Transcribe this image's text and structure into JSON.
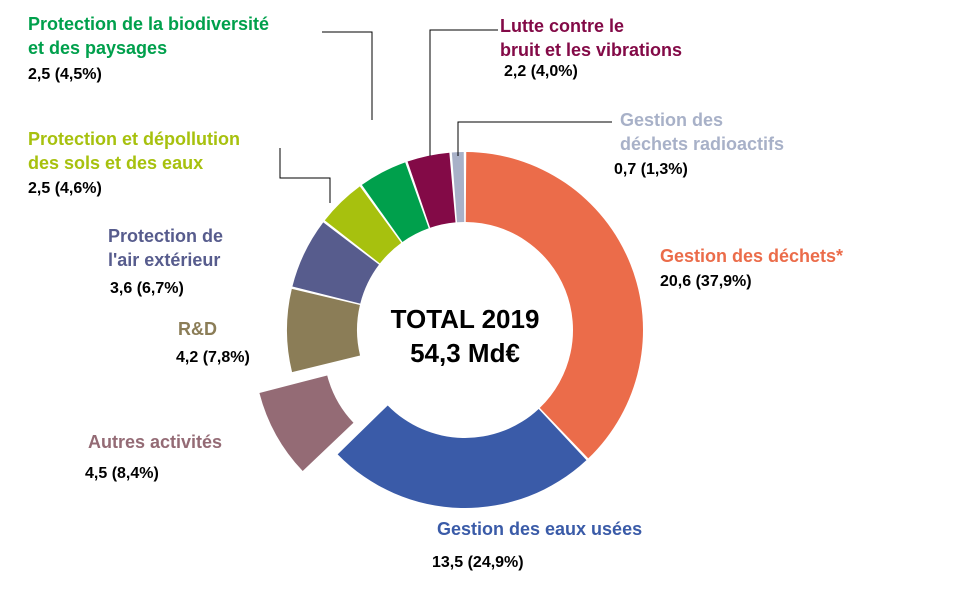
{
  "chart_data": {
    "type": "pie",
    "variant": "donut",
    "center_text": [
      "TOTAL 2019",
      "54,3 Md€"
    ],
    "slices": [
      {
        "name": "Gestion des déchets*",
        "label_lines": [
          "Gestion des déchets*"
        ],
        "value": 20.6,
        "value_label": "20,6 (37,9%)",
        "color": "#EB6C4A"
      },
      {
        "name": "Gestion des eaux usées",
        "label_lines": [
          "Gestion des eaux usées"
        ],
        "value": 13.5,
        "value_label": "13,5 (24,9%)",
        "color": "#3A5BA8"
      },
      {
        "name": "Autres activités",
        "label_lines": [
          "Autres activités"
        ],
        "value": 4.5,
        "value_label": "4,5 (8,4%)",
        "color": "#946B75",
        "exploded": true
      },
      {
        "name": "R&D",
        "label_lines": [
          "R&D"
        ],
        "value": 4.2,
        "value_label": "4,2 (7,8%)",
        "color": "#8B7D57"
      },
      {
        "name": "Protection de l'air extérieur",
        "label_lines": [
          "Protection de",
          "l'air extérieur"
        ],
        "value": 3.6,
        "value_label": "3,6 (6,7%)",
        "color": "#575C8D"
      },
      {
        "name": "Protection et dépollution des sols et des eaux",
        "label_lines": [
          "Protection et dépollution",
          "des sols et des eaux"
        ],
        "value": 2.5,
        "value_label": "2,5 (4,6%)",
        "color": "#A7C10E"
      },
      {
        "name": "Protection de la biodiversité et des paysages",
        "label_lines": [
          "Protection de la biodiversité",
          "et des paysages"
        ],
        "value": 2.5,
        "value_label": "2,5 (4,5%)",
        "color": "#00A04C"
      },
      {
        "name": "Lutte contre le bruit et les vibrations",
        "label_lines": [
          "Lutte contre le",
          "bruit et les vibrations"
        ],
        "value": 2.2,
        "value_label": "2,2 (4,0%)",
        "color": "#830A47"
      },
      {
        "name": "Gestion des déchets radioactifs",
        "label_lines": [
          "Gestion des",
          "déchets radioactifs"
        ],
        "value": 0.7,
        "value_label": "0,7 (1,3%)",
        "color": "#A8B1C8"
      }
    ]
  }
}
